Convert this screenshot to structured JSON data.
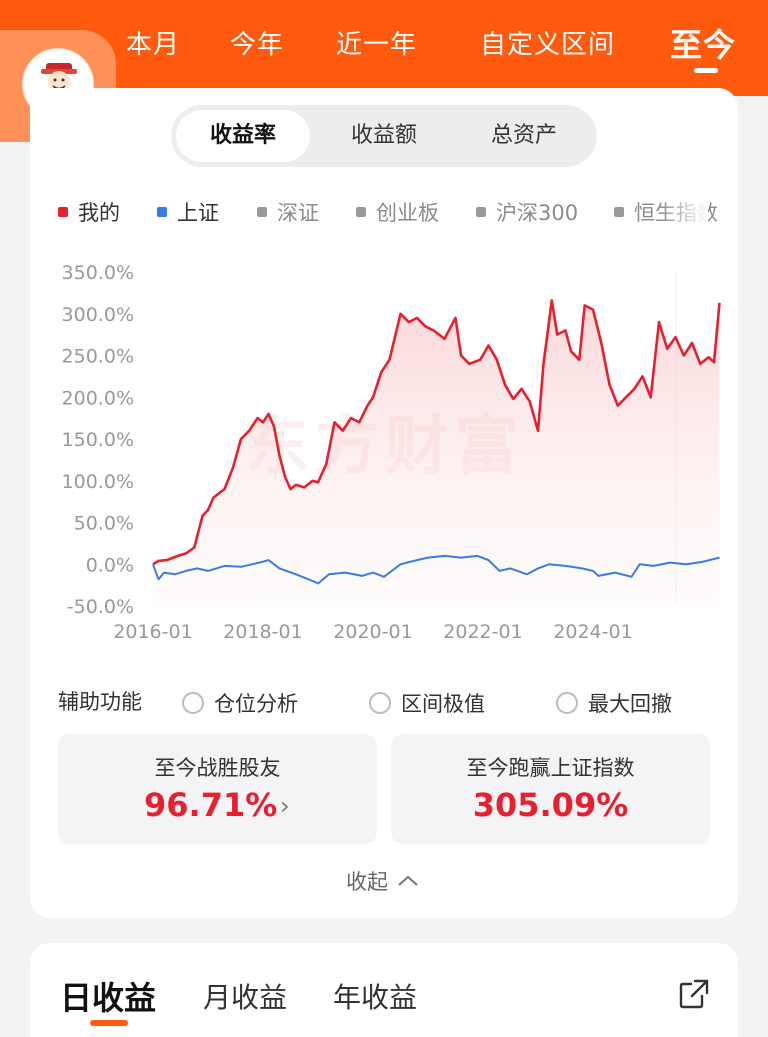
{
  "header": {
    "tabs": [
      {
        "label": "本月"
      },
      {
        "label": "今年"
      },
      {
        "label": "近一年"
      },
      {
        "label": "自定义区间"
      },
      {
        "label": "至今",
        "active": true
      }
    ],
    "accent": "#ff5a0e"
  },
  "segment": {
    "options": [
      "收益率",
      "收益额",
      "总资产"
    ],
    "selected": "收益率"
  },
  "legend": [
    {
      "label": "我的",
      "color": "#e6202f",
      "active": true
    },
    {
      "label": "上证",
      "color": "#3a7be8",
      "active": true
    },
    {
      "label": "深证",
      "color": "#9a9a9a",
      "active": false
    },
    {
      "label": "创业板",
      "color": "#9a9a9a",
      "active": false
    },
    {
      "label": "沪深300",
      "color": "#9a9a9a",
      "active": false
    },
    {
      "label": "恒生指数",
      "color": "#9a9a9a",
      "active": false
    }
  ],
  "watermark": "东方财富",
  "chart_data": {
    "type": "line",
    "y_ticks": [
      "350.0%",
      "300.0%",
      "250.0%",
      "200.0%",
      "150.0%",
      "100.0%",
      "50.0%",
      "0.0%",
      "-50.0%"
    ],
    "x_ticks": [
      "2016-01",
      "2018-01",
      "2020-01",
      "2022-01",
      "2024-01"
    ],
    "ylim": [
      -50,
      350
    ],
    "grid": false,
    "series": [
      {
        "name": "我的",
        "color": "#e6202f",
        "points": [
          [
            2016.0,
            0
          ],
          [
            2016.1,
            4
          ],
          [
            2016.25,
            5
          ],
          [
            2016.45,
            10
          ],
          [
            2016.6,
            13
          ],
          [
            2016.75,
            20
          ],
          [
            2016.9,
            58
          ],
          [
            2017.0,
            65
          ],
          [
            2017.1,
            80
          ],
          [
            2017.3,
            90
          ],
          [
            2017.45,
            115
          ],
          [
            2017.6,
            150
          ],
          [
            2017.75,
            160
          ],
          [
            2017.9,
            175
          ],
          [
            2018.0,
            170
          ],
          [
            2018.1,
            180
          ],
          [
            2018.2,
            165
          ],
          [
            2018.3,
            130
          ],
          [
            2018.4,
            105
          ],
          [
            2018.5,
            90
          ],
          [
            2018.6,
            95
          ],
          [
            2018.75,
            92
          ],
          [
            2018.9,
            100
          ],
          [
            2019.0,
            98
          ],
          [
            2019.15,
            120
          ],
          [
            2019.3,
            170
          ],
          [
            2019.45,
            160
          ],
          [
            2019.6,
            175
          ],
          [
            2019.75,
            170
          ],
          [
            2019.9,
            190
          ],
          [
            2020.0,
            200
          ],
          [
            2020.15,
            230
          ],
          [
            2020.3,
            245
          ],
          [
            2020.5,
            300
          ],
          [
            2020.65,
            290
          ],
          [
            2020.8,
            295
          ],
          [
            2020.95,
            285
          ],
          [
            2021.1,
            280
          ],
          [
            2021.3,
            270
          ],
          [
            2021.5,
            295
          ],
          [
            2021.6,
            250
          ],
          [
            2021.75,
            240
          ],
          [
            2021.95,
            245
          ],
          [
            2022.1,
            262
          ],
          [
            2022.25,
            245
          ],
          [
            2022.4,
            215
          ],
          [
            2022.55,
            198
          ],
          [
            2022.7,
            210
          ],
          [
            2022.85,
            195
          ],
          [
            2023.0,
            160
          ],
          [
            2023.1,
            240
          ],
          [
            2023.25,
            316
          ],
          [
            2023.35,
            275
          ],
          [
            2023.5,
            280
          ],
          [
            2023.6,
            255
          ],
          [
            2023.75,
            245
          ],
          [
            2023.85,
            310
          ],
          [
            2024.0,
            305
          ],
          [
            2024.15,
            265
          ],
          [
            2024.3,
            215
          ],
          [
            2024.45,
            190
          ],
          [
            2024.6,
            200
          ],
          [
            2024.75,
            210
          ],
          [
            2024.9,
            225
          ],
          [
            2025.05,
            200
          ],
          [
            2025.2,
            290
          ],
          [
            2025.35,
            258
          ],
          [
            2025.5,
            272
          ],
          [
            2025.65,
            250
          ],
          [
            2025.8,
            265
          ],
          [
            2025.95,
            240
          ],
          [
            2026.1,
            248
          ],
          [
            2026.2,
            242
          ],
          [
            2026.3,
            313
          ]
        ]
      },
      {
        "name": "上证",
        "color": "#3a7be8",
        "points": [
          [
            2016.0,
            0
          ],
          [
            2016.1,
            -18
          ],
          [
            2016.2,
            -10
          ],
          [
            2016.4,
            -12
          ],
          [
            2016.6,
            -8
          ],
          [
            2016.8,
            -5
          ],
          [
            2017.0,
            -8
          ],
          [
            2017.3,
            -2
          ],
          [
            2017.6,
            -3
          ],
          [
            2017.8,
            0
          ],
          [
            2018.0,
            3
          ],
          [
            2018.1,
            5
          ],
          [
            2018.3,
            -5
          ],
          [
            2018.6,
            -12
          ],
          [
            2018.9,
            -20
          ],
          [
            2019.0,
            -23
          ],
          [
            2019.2,
            -12
          ],
          [
            2019.5,
            -10
          ],
          [
            2019.8,
            -14
          ],
          [
            2020.0,
            -10
          ],
          [
            2020.2,
            -15
          ],
          [
            2020.5,
            0
          ],
          [
            2020.8,
            5
          ],
          [
            2021.0,
            8
          ],
          [
            2021.3,
            10
          ],
          [
            2021.6,
            8
          ],
          [
            2021.9,
            10
          ],
          [
            2022.1,
            5
          ],
          [
            2022.3,
            -8
          ],
          [
            2022.5,
            -5
          ],
          [
            2022.8,
            -12
          ],
          [
            2023.0,
            -5
          ],
          [
            2023.2,
            0
          ],
          [
            2023.5,
            -2
          ],
          [
            2023.8,
            -5
          ],
          [
            2024.0,
            -8
          ],
          [
            2024.1,
            -14
          ],
          [
            2024.4,
            -10
          ],
          [
            2024.7,
            -15
          ],
          [
            2024.85,
            0
          ],
          [
            2025.1,
            -2
          ],
          [
            2025.4,
            2
          ],
          [
            2025.7,
            0
          ],
          [
            2026.0,
            3
          ],
          [
            2026.3,
            8
          ]
        ]
      }
    ]
  },
  "aux": {
    "title": "辅助功能",
    "options": [
      "仓位分析",
      "区间极值",
      "最大回撤"
    ]
  },
  "stats": [
    {
      "label": "至今战胜股友",
      "value": "96.71%",
      "has_arrow": true,
      "arrow": "›"
    },
    {
      "label": "至今跑赢上证指数",
      "value": "305.09%",
      "has_arrow": false
    }
  ],
  "collapse_label": "收起",
  "period_tabs": [
    "日收益",
    "月收益",
    "年收益"
  ],
  "period_selected": "日收益"
}
